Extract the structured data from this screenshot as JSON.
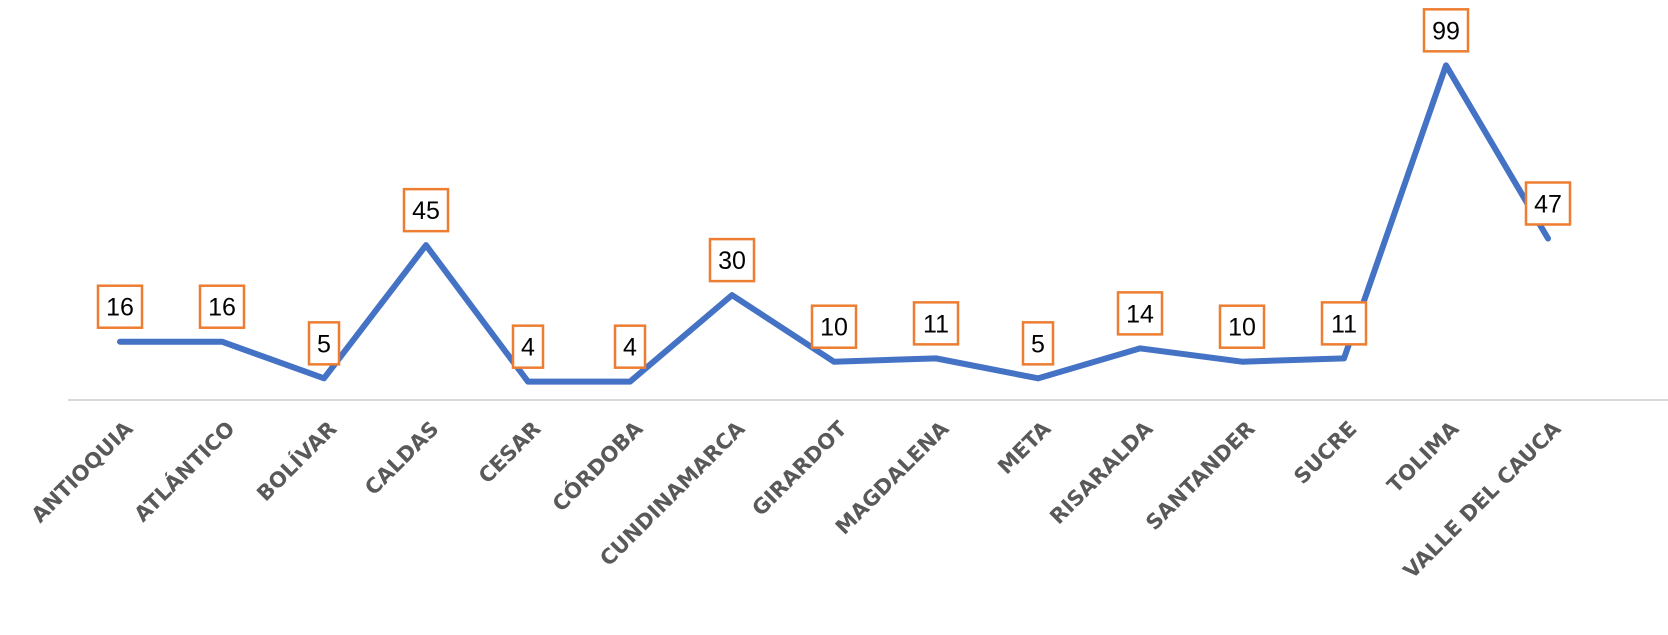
{
  "chart_data": {
    "type": "line",
    "title": "",
    "xlabel": "",
    "ylabel": "",
    "categories": [
      "ANTIOQUIA",
      "ATLÁNTICO",
      "BOLÍVAR",
      "CALDAS",
      "CESAR",
      "CÓRDOBA",
      "CUNDINAMARCA",
      "GIRARDOT",
      "MAGDALENA",
      "META",
      "RISARALDA",
      "SANTANDER",
      "SUCRE",
      "TOLIMA",
      "VALLE DEL CAUCA"
    ],
    "series": [
      {
        "values": [
          16,
          16,
          5,
          45,
          4,
          4,
          30,
          10,
          11,
          5,
          14,
          10,
          11,
          99,
          47
        ]
      }
    ],
    "ylim": [
      0,
      100
    ],
    "grid": false,
    "legend": "none",
    "data_labels": true,
    "colors": {
      "line": "#4472c4",
      "label_border": "#ed7d31",
      "axis": "#d9d9d9",
      "tick_text": "#595959"
    }
  }
}
